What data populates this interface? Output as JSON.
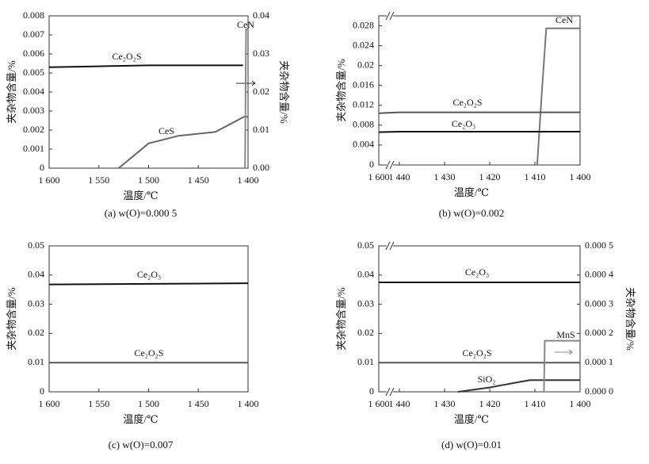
{
  "chart_data": [
    {
      "type": "line",
      "caption": "(a) w(O)=0.000 5",
      "xlabel": "温度/℃",
      "ylabel": "夹杂物含量/%",
      "y2label": "夹杂物含量/%",
      "xlim": [
        1600,
        1400
      ],
      "xticks": [
        {
          "value": 1600,
          "label": "1 600"
        },
        {
          "value": 1550,
          "label": "1 550"
        },
        {
          "value": 1500,
          "label": "1 500"
        },
        {
          "value": 1450,
          "label": "1 450"
        },
        {
          "value": 1400,
          "label": "1 400"
        }
      ],
      "ylim": [
        0,
        0.008
      ],
      "yticks": [
        0,
        0.001,
        0.002,
        0.003,
        0.004,
        0.005,
        0.006,
        0.007,
        0.008
      ],
      "y2lim": [
        0,
        0.04
      ],
      "y2ticks": [
        {
          "value": 0,
          "label": "0.00"
        },
        {
          "value": 0.01,
          "label": "0.01"
        },
        {
          "value": 0.02,
          "label": "0.02"
        },
        {
          "value": 0.03,
          "label": "0.03"
        },
        {
          "value": 0.04,
          "label": "0.04"
        }
      ],
      "series": [
        {
          "name": "Ce₂O₂S",
          "color": "#111111",
          "x": [
            1600,
            1550,
            1500,
            1450,
            1405
          ],
          "values": [
            0.0053,
            0.00535,
            0.0054,
            0.0054,
            0.0054
          ]
        },
        {
          "name": "CeS",
          "color": "#666666",
          "x": [
            1530,
            1500,
            1470,
            1433,
            1404,
            1400
          ],
          "values": [
            0,
            0.0013,
            0.0017,
            0.0019,
            0.0027,
            0.0027
          ]
        },
        {
          "name": "CeN",
          "color": "#888888",
          "axis": "y2",
          "x": [
            1403,
            1402,
            1400
          ],
          "values": [
            0,
            0.0365,
            0.0365
          ]
        }
      ]
    },
    {
      "type": "line",
      "caption": "(b) w(O)=0.002",
      "xlabel": "温度/℃",
      "ylabel": "夹杂物含量/%",
      "xlim": [
        1600,
        1400
      ],
      "x_break": [
        1600,
        1440
      ],
      "xticks": [
        {
          "value": 1600,
          "label": "1 600"
        },
        {
          "value": 1440,
          "label": "1 440"
        },
        {
          "value": 1430,
          "label": "1 430"
        },
        {
          "value": 1420,
          "label": "1 420"
        },
        {
          "value": 1410,
          "label": "1 410"
        },
        {
          "value": 1400,
          "label": "1 400"
        }
      ],
      "ylim": [
        0,
        0.03
      ],
      "yticks": [
        0,
        0.004,
        0.008,
        0.012,
        0.016,
        0.02,
        0.024,
        0.028
      ],
      "series": [
        {
          "name": "CeN",
          "color": "#777777",
          "x": [
            1409.5,
            1408.5,
            1407.5,
            1400
          ],
          "values": [
            0,
            0.014,
            0.0275,
            0.0275
          ]
        },
        {
          "name": "Ce₂O₂S",
          "color": "#555555",
          "x": [
            1600,
            1440,
            1408,
            1400
          ],
          "values": [
            0.0104,
            0.0106,
            0.0106,
            0.0106
          ]
        },
        {
          "name": "Ce₂O₃",
          "color": "#111111",
          "x": [
            1600,
            1440,
            1408,
            1400
          ],
          "values": [
            0.0066,
            0.0067,
            0.0067,
            0.0067
          ]
        }
      ]
    },
    {
      "type": "line",
      "caption": "(c) w(O)=0.007",
      "xlabel": "温度/℃",
      "ylabel": "夹杂物含量/%",
      "xlim": [
        1600,
        1400
      ],
      "xticks": [
        {
          "value": 1600,
          "label": "1 600"
        },
        {
          "value": 1550,
          "label": "1 550"
        },
        {
          "value": 1500,
          "label": "1 500"
        },
        {
          "value": 1450,
          "label": "1 450"
        },
        {
          "value": 1400,
          "label": "1 400"
        }
      ],
      "ylim": [
        0,
        0.05
      ],
      "yticks": [
        0,
        0.01,
        0.02,
        0.03,
        0.04,
        0.05
      ],
      "series": [
        {
          "name": "Ce₂O₃",
          "color": "#111111",
          "x": [
            1600,
            1400
          ],
          "values": [
            0.0368,
            0.0372
          ]
        },
        {
          "name": "Ce₂O₂S",
          "color": "#555555",
          "x": [
            1600,
            1400
          ],
          "values": [
            0.01,
            0.01
          ]
        }
      ]
    },
    {
      "type": "line",
      "caption": "(d) w(O)=0.01",
      "xlabel": "温度/℃",
      "ylabel": "夹杂物含量/%",
      "y2label": "夹杂物含量/%",
      "xlim": [
        1600,
        1400
      ],
      "x_break": [
        1600,
        1440
      ],
      "xticks": [
        {
          "value": 1600,
          "label": "1 600"
        },
        {
          "value": 1440,
          "label": "1 440"
        },
        {
          "value": 1430,
          "label": "1 430"
        },
        {
          "value": 1420,
          "label": "1 420"
        },
        {
          "value": 1410,
          "label": "1 410"
        },
        {
          "value": 1400,
          "label": "1 400"
        }
      ],
      "ylim": [
        0,
        0.05
      ],
      "yticks": [
        0,
        0.01,
        0.02,
        0.03,
        0.04,
        0.05
      ],
      "y2lim": [
        0,
        0.0005
      ],
      "y2ticks": [
        {
          "value": 0,
          "label": "0.000 0"
        },
        {
          "value": 0.0001,
          "label": "0.000 1"
        },
        {
          "value": 0.0002,
          "label": "0.000 2"
        },
        {
          "value": 0.0003,
          "label": "0.000 3"
        },
        {
          "value": 0.0004,
          "label": "0.000 4"
        },
        {
          "value": 0.0005,
          "label": "0.000 5"
        }
      ],
      "series": [
        {
          "name": "Ce₂O₃",
          "color": "#111111",
          "x": [
            1600,
            1440,
            1400
          ],
          "values": [
            0.0375,
            0.0375,
            0.0375
          ]
        },
        {
          "name": "Ce₂O₂S",
          "color": "#555555",
          "x": [
            1600,
            1440,
            1400
          ],
          "values": [
            0.01,
            0.01,
            0.01
          ]
        },
        {
          "name": "SiO₂",
          "color": "#333333",
          "x": [
            1427,
            1420,
            1413,
            1411,
            1400
          ],
          "values": [
            0,
            0.0015,
            0.0035,
            0.004,
            0.004
          ]
        },
        {
          "name": "MnS",
          "color": "#888888",
          "axis": "y2",
          "x": [
            1408,
            1407.8,
            1400
          ],
          "values": [
            0,
            0.000175,
            0.000175
          ]
        }
      ]
    }
  ]
}
